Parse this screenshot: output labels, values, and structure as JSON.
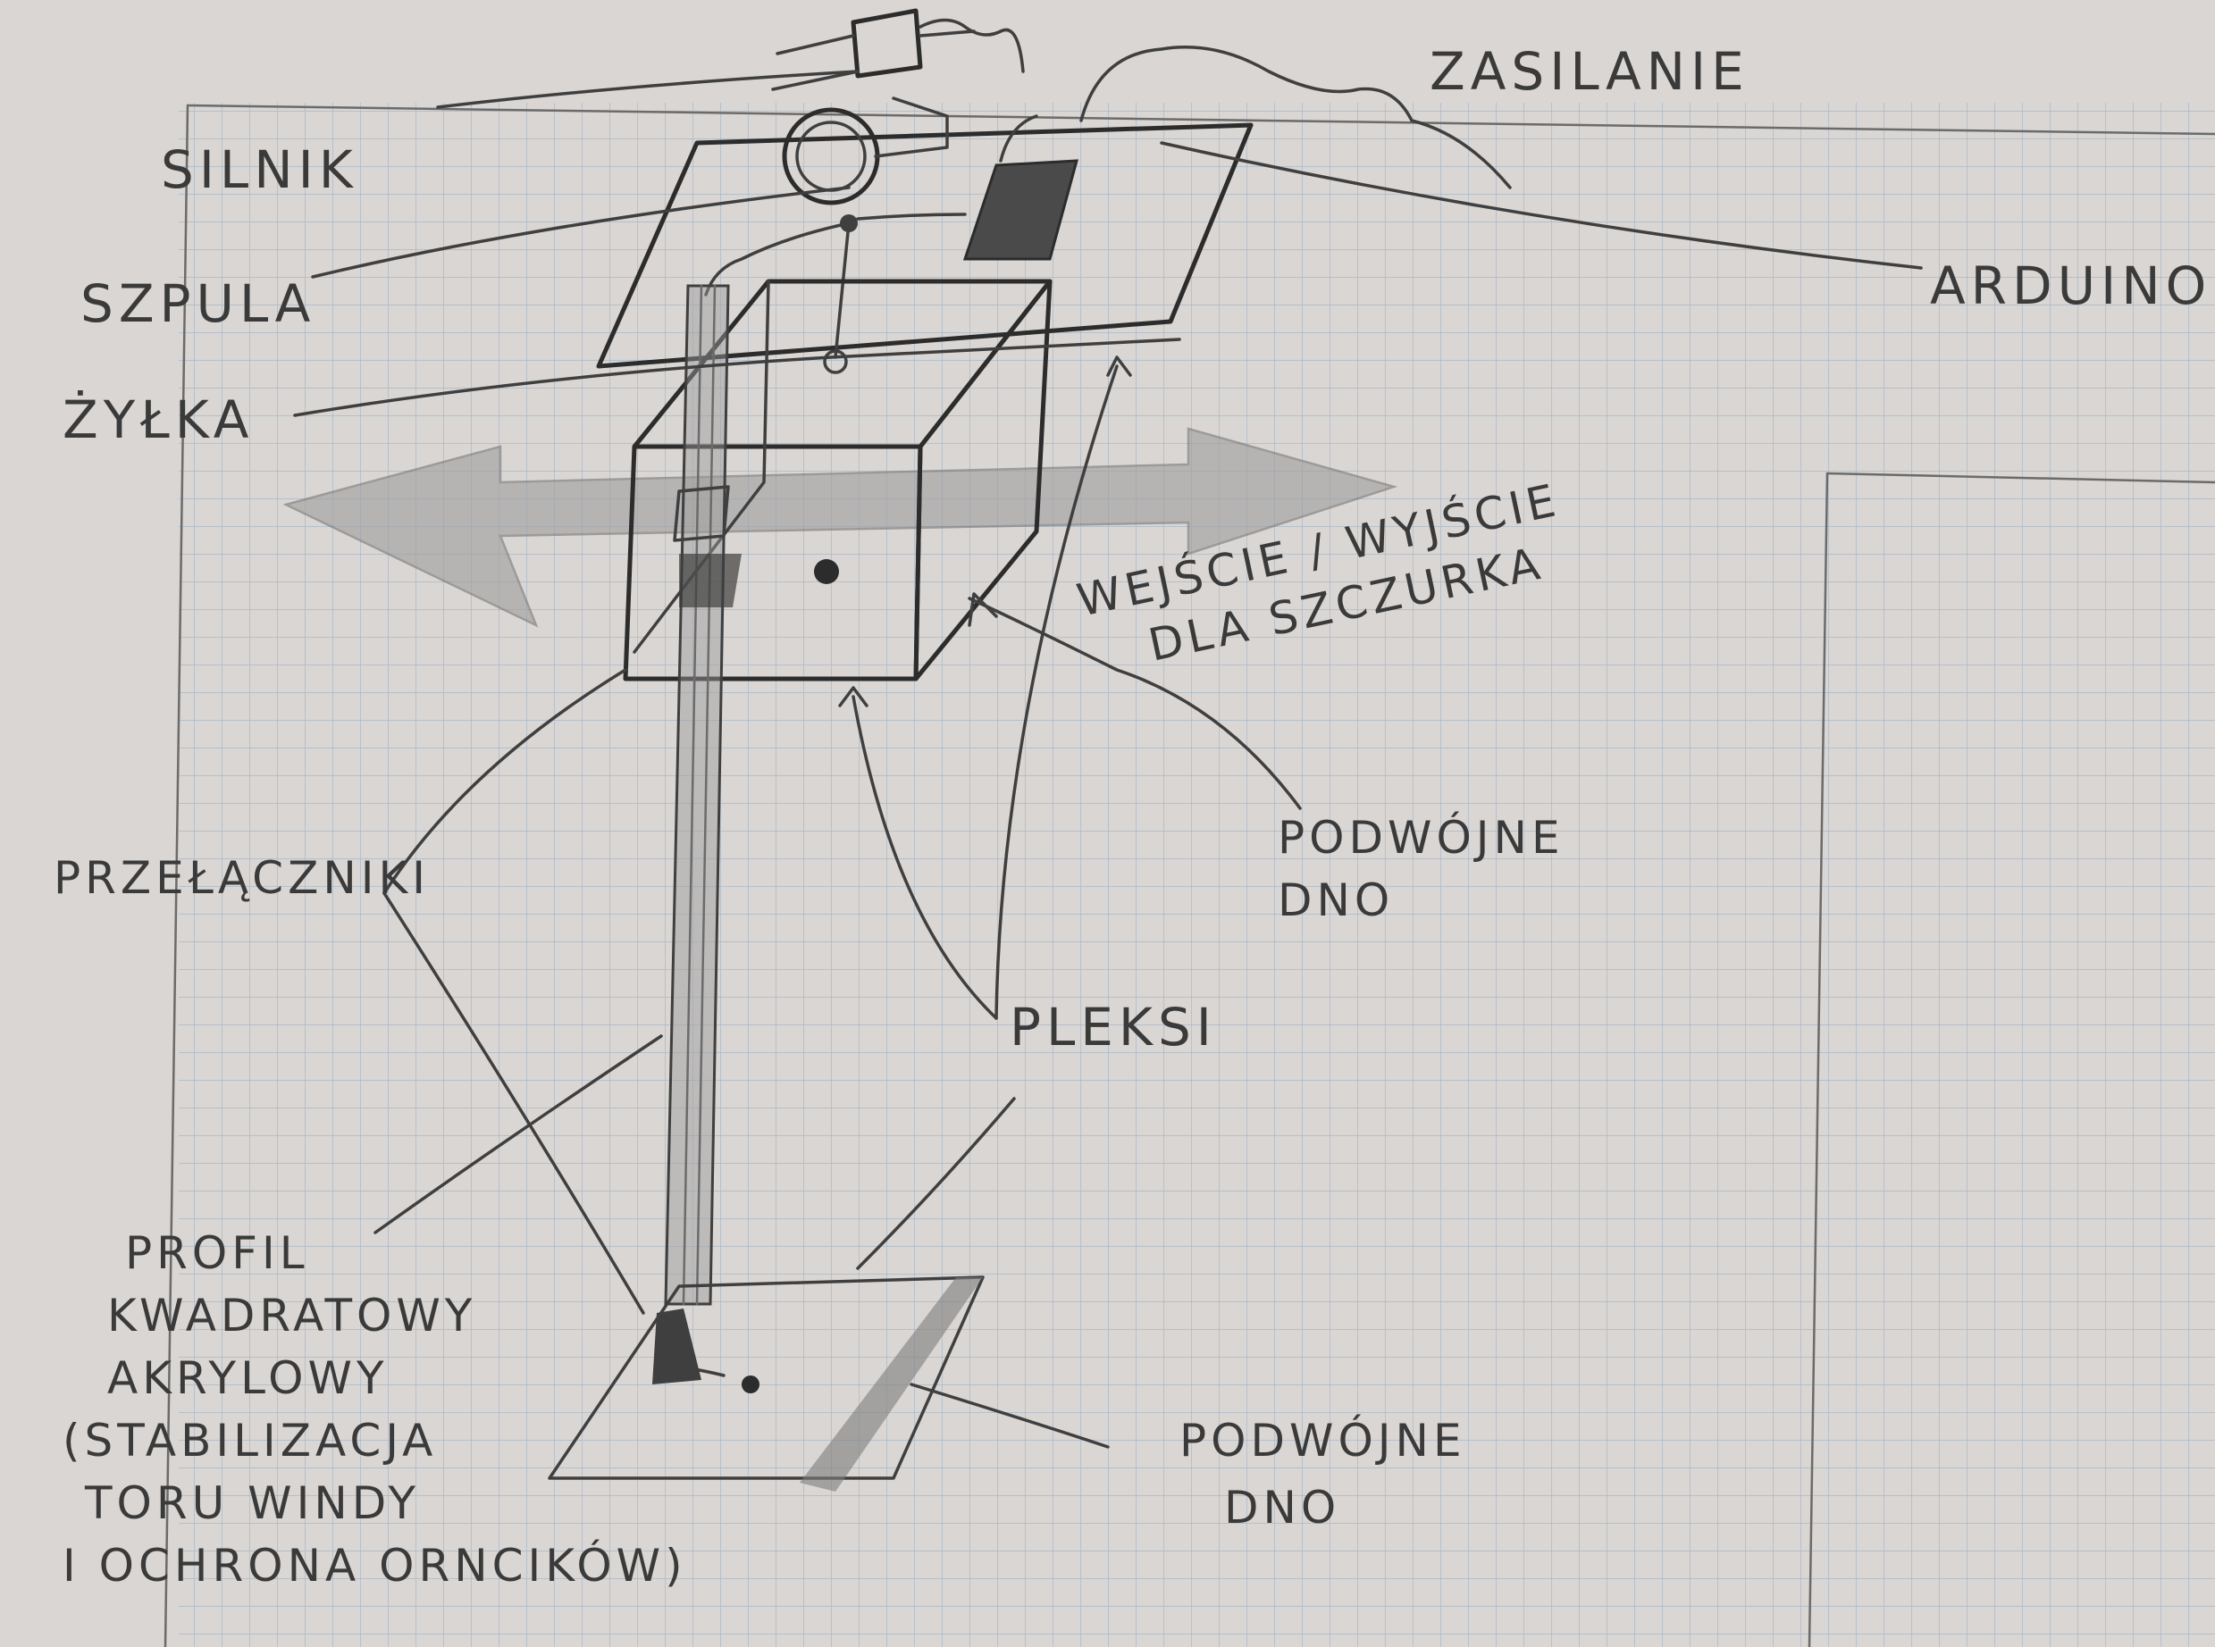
{
  "labels": {
    "zasilanie": "ZASILANIE",
    "silnik": "SILNIK",
    "szpula": "SZPULA",
    "zylka": "ŻYŁKA",
    "arduino": "ARDUINO",
    "wejscie_line1": "WEJŚCIE / WYJŚCIE",
    "wejscie_line2": "DLA SZCZURKA",
    "podwojne_dno_top_1": "PODWÓJNE",
    "podwojne_dno_top_2": "DNO",
    "przelaczniki": "PRZEŁĄCZNIKI",
    "pleksi": "PLEKSI",
    "profil_1": "PROFIL",
    "profil_2": "KWADRATOWY",
    "profil_3": "AKRYLOWY",
    "profil_4": "(STABILIZACJA",
    "profil_5": "TORU WINDY",
    "profil_6": "I OCHRONA ORNCIKÓW)",
    "podwojne_dno_bottom_1": "PODWÓJNE",
    "podwojne_dno_bottom_2": "DNO"
  },
  "colors": {
    "paper": "#d9d6d3",
    "grid": "#a9b8c7",
    "pencil": "#3f3f3f",
    "shade": "#8a8a8a"
  }
}
